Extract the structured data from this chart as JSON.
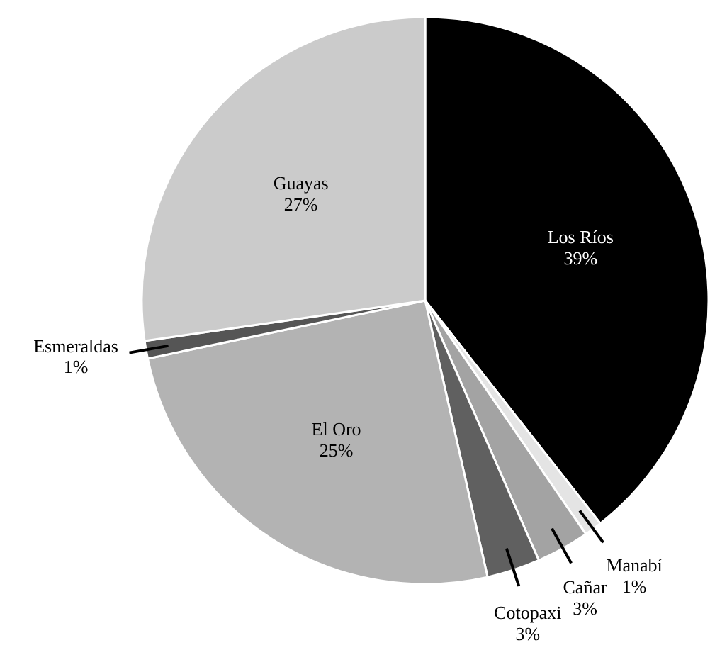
{
  "chart_data": {
    "type": "pie",
    "categories": [
      "Los Ríos",
      "Manabí",
      "Cañar",
      "Cotopaxi",
      "El Oro",
      "Esmeraldas",
      "Guayas"
    ],
    "values": [
      39,
      1,
      3,
      3,
      25,
      1,
      27
    ],
    "value_labels": [
      "39%",
      "1%",
      "3%",
      "3%",
      "25%",
      "1%",
      "27%"
    ],
    "colors": [
      "#000000",
      "#e4e4e4",
      "#a3a3a3",
      "#606060",
      "#b3b3b3",
      "#555555",
      "#cbcbcb"
    ]
  }
}
